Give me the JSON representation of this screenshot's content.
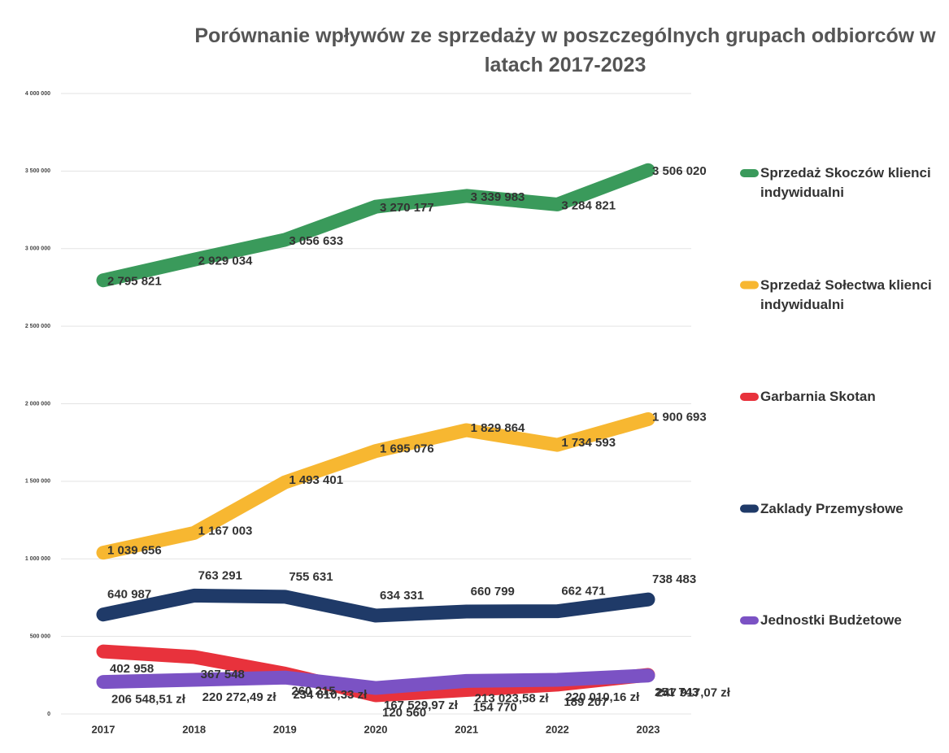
{
  "chart_data": {
    "type": "line",
    "title": "Porównanie wpływów ze sprzedaży w poszczególnych grupach odbiorców w latach 2017-2023",
    "categories": [
      "2017",
      "2018",
      "2019",
      "2020",
      "2021",
      "2022",
      "2023"
    ],
    "ylim": [
      0,
      4000000
    ],
    "yticks": [
      0,
      {
        "value": 500000,
        "label": "500 000"
      },
      {
        "value": 1000000,
        "label": "1 000 000"
      },
      {
        "value": 1500000,
        "label": "1 500 000"
      },
      {
        "value": 2000000,
        "label": "2 000 000"
      },
      {
        "value": 2500000,
        "label": "2 500 000"
      },
      {
        "value": 3000000,
        "label": "3 000 000"
      },
      {
        "value": 3500000,
        "label": "3 500 000"
      },
      {
        "value": 4000000,
        "label": "4 000 000"
      }
    ],
    "grid": true,
    "legend": "right",
    "series": [
      {
        "name": "Sprzedaż Skoczów klienci indywidualni",
        "color": "#3a9a5b",
        "values": [
          2795821,
          2929034,
          3056633,
          3270177,
          3339983,
          3284821,
          3506020
        ],
        "value_labels": [
          "2 795 821",
          "2 929 034",
          "3 056 633",
          "3 270 177",
          "3 339 983",
          "3 284 821",
          "3 506 020"
        ]
      },
      {
        "name": "Sprzedaż Sołectwa klienci indywidualni",
        "color": "#f7b731",
        "values": [
          1039656,
          1167003,
          1493401,
          1695076,
          1829864,
          1734593,
          1900693
        ],
        "value_labels": [
          "1 039 656",
          "1 167 003",
          "1 493 401",
          "1 695 076",
          "1 829 864",
          "1 734 593",
          "1 900 693"
        ]
      },
      {
        "name": "Garbarnia Skotan",
        "color": "#e8323c",
        "values": [
          402958,
          367548,
          260215,
          120560,
          154770,
          189207,
          251743
        ],
        "value_labels": [
          "402 958",
          "367 548",
          "260 215",
          "120 560",
          "154 770",
          "189 207",
          "251 743"
        ]
      },
      {
        "name": "Zaklady Przemysłowe",
        "color": "#1f3a68",
        "values": [
          640987,
          763291,
          755631,
          634331,
          660799,
          662471,
          738483
        ],
        "value_labels": [
          "640 987",
          "763 291",
          "755 631",
          "634 331",
          "660 799",
          "662 471",
          "738 483"
        ]
      },
      {
        "name": "Jednostki Budżetowe",
        "color": "#7b52c4",
        "values": [
          206548.51,
          220272.49,
          234810.33,
          167529.97,
          213023.58,
          220010.16,
          247917.07
        ],
        "value_labels": [
          "206 548,51 zł",
          "220 272,49 zł",
          "234 810,33 zł",
          "167 529,97 zł",
          "213 023,58 zł",
          "220 010,16 zł",
          "247 917,07 zł"
        ]
      }
    ]
  }
}
